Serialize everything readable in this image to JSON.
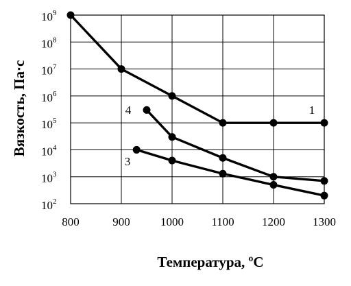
{
  "chart_data": {
    "type": "line",
    "xlabel": "Температура, ºС",
    "ylabel": "Вязкость,  Па·с",
    "xlim": [
      800,
      1300
    ],
    "ylim_log10": [
      2,
      9
    ],
    "y_scale": "log",
    "grid": true,
    "x_ticks": [
      "800",
      "900",
      "1000",
      "1100",
      "1200",
      "1300"
    ],
    "y_ticks": [
      {
        "base": "10",
        "exp": "9"
      },
      {
        "base": "10",
        "exp": "8"
      },
      {
        "base": "10",
        "exp": "7"
      },
      {
        "base": "10",
        "exp": "6"
      },
      {
        "base": "10",
        "exp": "5"
      },
      {
        "base": "10",
        "exp": "4"
      },
      {
        "base": "10",
        "exp": "3"
      },
      {
        "base": "10",
        "exp": "2"
      }
    ],
    "series": [
      {
        "name": "1",
        "x": [
          800,
          900,
          1000,
          1100,
          1200,
          1300
        ],
        "y": [
          1000000000,
          10000000,
          1000000,
          100000,
          100000,
          100000
        ]
      },
      {
        "name": "4",
        "x": [
          950,
          1000,
          1100,
          1200,
          1300
        ],
        "y": [
          300000,
          30000,
          5000,
          1000,
          700
        ]
      },
      {
        "name": "3",
        "x": [
          930,
          1000,
          1100,
          1200,
          1300
        ],
        "y": [
          10000,
          4000,
          1300,
          500,
          200
        ]
      }
    ]
  }
}
